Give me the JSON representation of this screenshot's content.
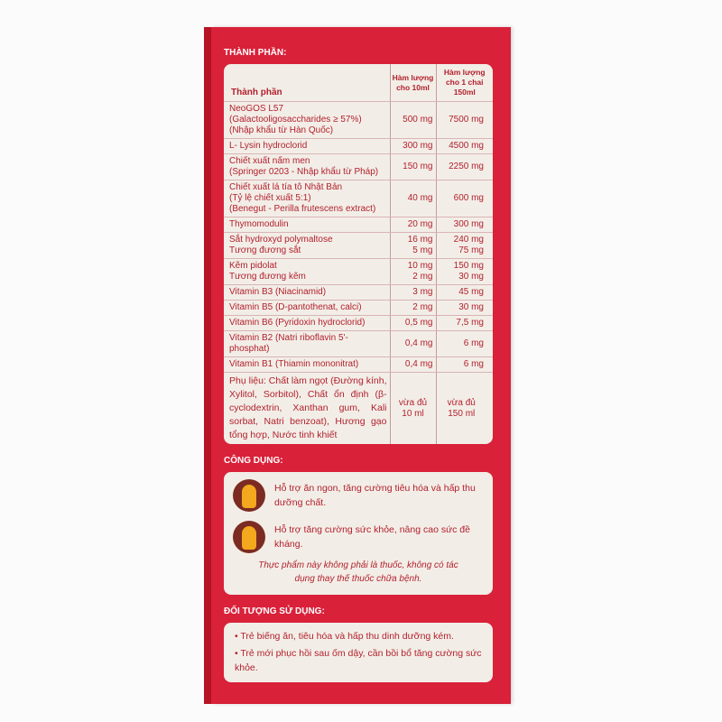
{
  "ingredients": {
    "section_title": "THÀNH PHẦN:",
    "headers": [
      "Thành phần",
      "Hàm lượng cho 10ml",
      "Hàm lượng cho 1 chai 150ml"
    ],
    "rows": [
      {
        "name": "NeoGOS L57\n(Galactooligosaccharides ≥ 57%)\n(Nhập khẩu từ Hàn Quốc)",
        "per10": "500 mg",
        "per150": "7500 mg"
      },
      {
        "name": "L- Lysin hydroclorid",
        "per10": "300 mg",
        "per150": "4500 mg"
      },
      {
        "name": "Chiết xuất nấm men\n(Springer 0203 - Nhập khẩu từ Pháp)",
        "per10": "150 mg",
        "per150": "2250 mg"
      },
      {
        "name": "Chiết xuất lá tía tô Nhật Bản\n(Tỷ lệ chiết xuất 5:1)\n(Benegut - Perilla frutescens extract)",
        "per10": "40 mg",
        "per150": "600 mg"
      },
      {
        "name": "Thymomodulin",
        "per10": "20 mg",
        "per150": "300 mg"
      },
      {
        "name": "Sắt hydroxyd polymaltose\nTương đương sắt",
        "per10": "16 mg\n5 mg",
        "per150": "240 mg\n75 mg"
      },
      {
        "name": "Kẽm pidolat\nTương đương kẽm",
        "per10": "10 mg\n2 mg",
        "per150": "150 mg\n30 mg"
      },
      {
        "name": "Vitamin B3 (Niacinamid)",
        "per10": "3 mg",
        "per150": "45 mg"
      },
      {
        "name": "Vitamin B5 (D-pantothenat, calci)",
        "per10": "2 mg",
        "per150": "30 mg"
      },
      {
        "name": "Vitamin B6 (Pyridoxin hydroclorid)",
        "per10": "0,5 mg",
        "per150": "7,5 mg"
      },
      {
        "name": "Vitamin B2 (Natri riboflavin 5'-phosphat)",
        "per10": "0,4 mg",
        "per150": "6 mg"
      },
      {
        "name": "Vitamin B1 (Thiamin mononitrat)",
        "per10": "0,4 mg",
        "per150": "6 mg"
      },
      {
        "name": "Phụ liệu: Chất làm ngọt (Đường kính, Xylitol, Sorbitol), Chất ổn định (β-cyclodextrin, Xanthan gum, Kali sorbat, Natri benzoat), Hương gạo tổng hợp, Nước tinh khiết",
        "per10": "vừa đủ\n10 ml",
        "per150": "vừa đủ\n150 ml"
      }
    ]
  },
  "uses": {
    "section_title": "CÔNG DỤNG:",
    "items": [
      {
        "icon": "dinosaur-eating-icon",
        "text": "Hỗ trợ ăn ngon, tăng cường tiêu hóa và hấp thu dưỡng chất."
      },
      {
        "icon": "dinosaur-happy-icon",
        "text": "Hỗ trợ tăng cường sức khỏe, nâng cao sức đề kháng."
      }
    ],
    "note": "Thực phẩm này không phải là thuốc, không có tác dụng thay thế thuốc chữa bệnh."
  },
  "audience": {
    "section_title": "ĐỐI TƯỢNG SỬ DỤNG:",
    "items": [
      "• Trẻ biếng ăn, tiêu hóa và hấp thu dinh dưỡng kém.",
      "• Trẻ mới phục hồi sau ốm dậy, cần bồi bổ tăng cường sức khỏe."
    ]
  },
  "colors": {
    "box_red": "#d9213a",
    "card": "#f2eee7",
    "text_red": "#b3202e",
    "icon_brown": "#7c2b22",
    "dino_yellow": "#f3a81d"
  }
}
